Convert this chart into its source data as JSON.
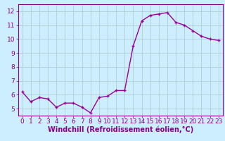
{
  "x": [
    0,
    1,
    2,
    3,
    4,
    5,
    6,
    7,
    8,
    9,
    10,
    11,
    12,
    13,
    14,
    15,
    16,
    17,
    18,
    19,
    20,
    21,
    22,
    23
  ],
  "y": [
    6.2,
    5.5,
    5.8,
    5.7,
    5.1,
    5.4,
    5.4,
    5.1,
    4.7,
    5.8,
    5.9,
    6.3,
    6.3,
    9.5,
    11.3,
    11.7,
    11.8,
    11.9,
    11.2,
    11.0,
    10.6,
    10.2,
    10.0,
    9.9
  ],
  "line_color": "#990099",
  "marker": "+",
  "marker_size": 3,
  "linewidth": 1.0,
  "xlabel": "Windchill (Refroidissement éolien,°C)",
  "xlim": [
    -0.5,
    23.5
  ],
  "ylim": [
    4.5,
    12.5
  ],
  "yticks": [
    5,
    6,
    7,
    8,
    9,
    10,
    11,
    12
  ],
  "xticks": [
    0,
    1,
    2,
    3,
    4,
    5,
    6,
    7,
    8,
    9,
    10,
    11,
    12,
    13,
    14,
    15,
    16,
    17,
    18,
    19,
    20,
    21,
    22,
    23
  ],
  "bg_color": "#cceeff",
  "grid_color": "#aacccc",
  "font_color": "#880088",
  "xlabel_fontsize": 7,
  "tick_fontsize": 6.5
}
